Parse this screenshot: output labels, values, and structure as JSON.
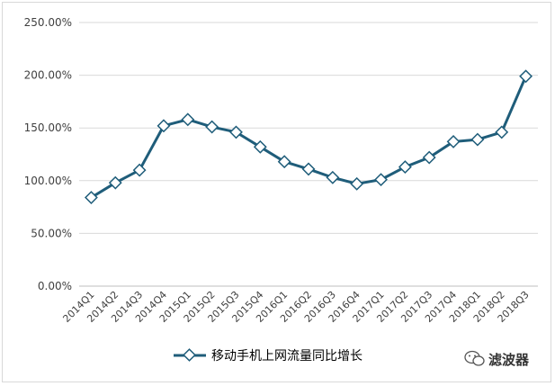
{
  "chart_data": {
    "type": "line",
    "title": "",
    "xlabel": "",
    "ylabel": "",
    "ylim": [
      0,
      250
    ],
    "y_ticks": [
      0,
      50,
      100,
      150,
      200,
      250
    ],
    "y_tick_labels": [
      "0.00%",
      "50.00%",
      "100.00%",
      "150.00%",
      "200.00%",
      "250.00%"
    ],
    "categories": [
      "2014Q1",
      "2014Q2",
      "2014Q3",
      "2014Q4",
      "2015Q1",
      "2015Q2",
      "2015Q3",
      "2015Q4",
      "2016Q1",
      "2016Q2",
      "2016Q3",
      "2016Q4",
      "2017Q1",
      "2017Q2",
      "2017Q3",
      "2017Q4",
      "2018Q1",
      "2018Q2",
      "2018Q3"
    ],
    "series": [
      {
        "name": "移动手机上网流量同比增长",
        "values": [
          84,
          98,
          110,
          152,
          158,
          151,
          146,
          132,
          118,
          111,
          103,
          97,
          101,
          113,
          122,
          137,
          139,
          146,
          199
        ]
      }
    ],
    "grid": true,
    "legend_position": "bottom",
    "colors": {
      "line": "#1f5d7a",
      "marker_fill": "#ffffff",
      "grid": "#d9d9d9",
      "axis": "#bfbfbf"
    }
  },
  "watermark": {
    "text": "滤波器",
    "icon": "wechat-icon"
  }
}
